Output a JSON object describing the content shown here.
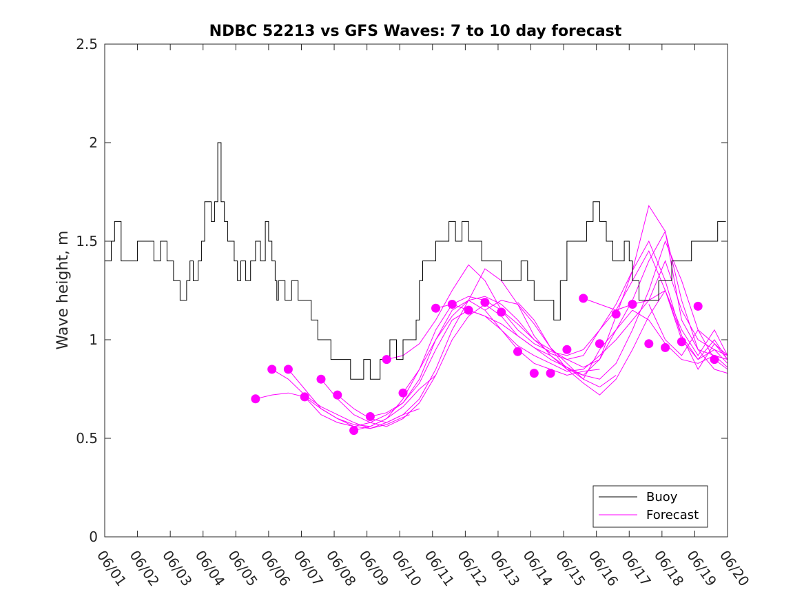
{
  "chart_data": {
    "type": "line",
    "title": "NDBC 52213 vs GFS Waves: 7 to 10 day forecast",
    "xlabel": "",
    "ylabel": "Wave height, m",
    "x_unit": "days",
    "xlim": [
      0,
      19
    ],
    "ylim": [
      0,
      2.5
    ],
    "yticks": [
      0,
      0.5,
      1,
      1.5,
      2,
      2.5
    ],
    "ytick_labels": [
      "0",
      "0.5",
      "1",
      "1.5",
      "2",
      "2.5"
    ],
    "xtick_labels": [
      "06/01",
      "06/02",
      "06/03",
      "06/04",
      "06/05",
      "06/06",
      "06/07",
      "06/08",
      "06/09",
      "06/10",
      "06/11",
      "06/12",
      "06/13",
      "06/14",
      "06/15",
      "06/16",
      "06/17",
      "06/18",
      "06/19",
      "06/20"
    ],
    "grid": false,
    "legend": {
      "placement": "bottom-right",
      "entries": [
        "Buoy",
        "Forecast"
      ]
    },
    "colors": {
      "buoy": "#000000",
      "forecast": "#ff00ff",
      "axis": "#262626"
    },
    "series": [
      {
        "name": "Buoy",
        "style": "step-line",
        "x": [
          0,
          0.2,
          0.3,
          0.5,
          0.8,
          1.0,
          1.2,
          1.5,
          1.7,
          1.9,
          2.1,
          2.3,
          2.5,
          2.6,
          2.7,
          2.85,
          2.95,
          3.05,
          3.15,
          3.25,
          3.35,
          3.45,
          3.55,
          3.65,
          3.75,
          3.85,
          3.95,
          4.05,
          4.15,
          4.3,
          4.45,
          4.6,
          4.75,
          4.9,
          5.0,
          5.1,
          5.2,
          5.25,
          5.3,
          5.5,
          5.7,
          5.9,
          6.1,
          6.3,
          6.5,
          6.7,
          6.9,
          7.1,
          7.3,
          7.5,
          7.7,
          7.9,
          8.1,
          8.3,
          8.4,
          8.5,
          8.7,
          8.9,
          9.1,
          9.3,
          9.5,
          9.6,
          9.7,
          9.9,
          10.1,
          10.3,
          10.5,
          10.7,
          10.9,
          11.1,
          11.3,
          11.5,
          11.7,
          11.9,
          12.1,
          12.3,
          12.5,
          12.7,
          12.9,
          13.1,
          13.3,
          13.5,
          13.7,
          13.9,
          14.1,
          14.3,
          14.5,
          14.7,
          14.9,
          15.1,
          15.3,
          15.5,
          15.7,
          15.85,
          16.0,
          16.1,
          16.2,
          16.3,
          16.4,
          16.5,
          16.7,
          16.9,
          17.1,
          17.3,
          17.5,
          17.7,
          17.9,
          18.1,
          18.3,
          18.5,
          18.7,
          18.85
        ],
        "y": [
          1.4,
          1.5,
          1.6,
          1.4,
          1.4,
          1.5,
          1.5,
          1.4,
          1.5,
          1.4,
          1.3,
          1.2,
          1.3,
          1.4,
          1.3,
          1.4,
          1.5,
          1.7,
          1.7,
          1.6,
          1.7,
          2.0,
          1.7,
          1.6,
          1.5,
          1.5,
          1.4,
          1.3,
          1.4,
          1.3,
          1.4,
          1.5,
          1.4,
          1.6,
          1.5,
          1.4,
          1.3,
          1.2,
          1.3,
          1.2,
          1.3,
          1.2,
          1.2,
          1.1,
          1.0,
          1.0,
          0.9,
          0.9,
          0.9,
          0.8,
          0.8,
          0.9,
          0.8,
          0.8,
          0.9,
          0.9,
          1.0,
          0.9,
          1.0,
          1.0,
          1.1,
          1.3,
          1.4,
          1.4,
          1.5,
          1.5,
          1.6,
          1.5,
          1.6,
          1.5,
          1.5,
          1.4,
          1.4,
          1.4,
          1.3,
          1.3,
          1.3,
          1.4,
          1.3,
          1.2,
          1.2,
          1.2,
          1.1,
          1.3,
          1.5,
          1.5,
          1.5,
          1.6,
          1.7,
          1.6,
          1.5,
          1.4,
          1.4,
          1.5,
          1.4,
          1.3,
          1.3,
          1.2,
          1.2,
          1.2,
          1.2,
          1.3,
          1.3,
          1.4,
          1.4,
          1.4,
          1.5,
          1.5,
          1.5,
          1.5,
          1.6,
          1.6
        ]
      },
      {
        "name": "Forecast",
        "style": "line-with-markers",
        "curves": [
          {
            "x": [
              4.6,
              5.1,
              5.6,
              6.1,
              6.6,
              7.1,
              7.6,
              8.1,
              8.6,
              9.0,
              9.3
            ],
            "y": [
              0.7,
              0.72,
              0.73,
              0.71,
              0.65,
              0.6,
              0.56,
              0.55,
              0.57,
              0.6,
              0.62
            ]
          },
          {
            "x": [
              5.1,
              5.6,
              6.1,
              6.6,
              7.1,
              7.6,
              8.1,
              8.6,
              9.1,
              9.6
            ],
            "y": [
              0.85,
              0.8,
              0.72,
              0.66,
              0.62,
              0.58,
              0.55,
              0.58,
              0.62,
              0.65
            ]
          },
          {
            "x": [
              5.6,
              6.1,
              6.6,
              7.1,
              7.6,
              8.1,
              8.6,
              9.1,
              9.6,
              10.1
            ],
            "y": [
              0.85,
              0.75,
              0.65,
              0.6,
              0.57,
              0.56,
              0.6,
              0.66,
              0.75,
              0.82
            ]
          },
          {
            "x": [
              6.1,
              6.6,
              7.1,
              7.6,
              8.1,
              8.6,
              9.1,
              9.6,
              10.1,
              10.6,
              11.1,
              11.6,
              12.1,
              12.6,
              13.1,
              13.6,
              14.1,
              14.6,
              15.1
            ],
            "y": [
              0.71,
              0.62,
              0.58,
              0.56,
              0.58,
              0.62,
              0.68,
              0.8,
              1.0,
              1.15,
              1.2,
              1.15,
              1.05,
              0.95,
              0.88,
              0.85,
              0.82,
              0.84,
              0.85
            ]
          },
          {
            "x": [
              6.6,
              7.1,
              7.6,
              8.1,
              8.6,
              9.1,
              9.6,
              10.1,
              10.6,
              11.1,
              11.6,
              12.1,
              12.6,
              13.1,
              13.6,
              14.1,
              14.6,
              15.1,
              15.6
            ],
            "y": [
              0.8,
              0.7,
              0.62,
              0.58,
              0.56,
              0.6,
              0.68,
              0.82,
              1.0,
              1.12,
              1.18,
              1.12,
              1.02,
              0.96,
              0.92,
              0.86,
              0.8,
              0.76,
              0.82
            ]
          },
          {
            "x": [
              7.1,
              7.6,
              8.1,
              8.6,
              9.1,
              9.6,
              10.1,
              10.6,
              11.1,
              11.6,
              12.1,
              12.6,
              13.1,
              13.6,
              14.1,
              14.6,
              15.1,
              15.6,
              16.1,
              16.6,
              17.1,
              17.6,
              18.1,
              18.6,
              19.0
            ],
            "y": [
              0.72,
              0.65,
              0.6,
              0.58,
              0.62,
              0.7,
              0.85,
              1.05,
              1.2,
              1.36,
              1.3,
              1.18,
              1.02,
              0.92,
              0.85,
              0.78,
              0.72,
              0.8,
              0.95,
              1.12,
              1.25,
              1.0,
              0.9,
              0.95,
              0.88
            ]
          },
          {
            "x": [
              7.6,
              8.1,
              8.6,
              9.1,
              9.6,
              10.1,
              10.6,
              11.1,
              11.6,
              12.1,
              12.6,
              13.1,
              13.6,
              14.1,
              14.6,
              15.1,
              15.6,
              16.1,
              16.6,
              17.1,
              17.6,
              18.1,
              18.6,
              19.0
            ],
            "y": [
              0.54,
              0.56,
              0.6,
              0.7,
              0.85,
              1.05,
              1.18,
              1.22,
              1.2,
              1.15,
              1.08,
              1.0,
              0.95,
              0.9,
              0.86,
              0.9,
              1.05,
              1.2,
              1.4,
              1.55,
              1.2,
              0.95,
              0.85,
              0.83
            ]
          },
          {
            "x": [
              8.1,
              8.6,
              9.1,
              9.6,
              10.1,
              10.6,
              11.1,
              11.6,
              12.1,
              12.6,
              13.1,
              13.6,
              14.1,
              14.6,
              15.1,
              15.6,
              16.1,
              16.6,
              17.1,
              17.6,
              18.1,
              18.6,
              19.0
            ],
            "y": [
              0.61,
              0.63,
              0.68,
              0.78,
              0.95,
              1.1,
              1.15,
              1.12,
              1.08,
              1.02,
              0.96,
              0.9,
              0.86,
              0.82,
              0.8,
              0.88,
              1.05,
              1.25,
              1.5,
              1.3,
              1.05,
              0.9,
              0.85
            ]
          },
          {
            "x": [
              8.6,
              9.1,
              9.6,
              10.1,
              10.6,
              11.1,
              11.6,
              12.1,
              12.6,
              13.1,
              13.6,
              14.1,
              14.6,
              15.1,
              15.6,
              16.1,
              16.6,
              17.1,
              17.6,
              18.1,
              18.6,
              19.0
            ],
            "y": [
              0.9,
              0.92,
              0.98,
              1.1,
              1.25,
              1.38,
              1.3,
              1.15,
              1.05,
              0.98,
              0.94,
              0.92,
              0.95,
              1.05,
              1.18,
              1.35,
              1.68,
              1.55,
              1.1,
              0.95,
              0.92,
              0.9
            ]
          },
          {
            "x": [
              9.1,
              9.6,
              10.1,
              10.6,
              11.1,
              11.6,
              12.1,
              12.6,
              13.1,
              13.6,
              14.1,
              14.6,
              15.1,
              15.6,
              16.1,
              16.6,
              17.1,
              17.6,
              18.1,
              18.6,
              19.0
            ],
            "y": [
              0.73,
              0.85,
              1.0,
              1.12,
              1.2,
              1.22,
              1.18,
              1.1,
              1.0,
              0.93,
              0.9,
              0.92,
              1.05,
              1.15,
              1.18,
              1.2,
              1.4,
              1.15,
              1.0,
              0.95,
              0.92
            ]
          },
          {
            "x": [
              10.1,
              10.6,
              11.1,
              11.6,
              12.1,
              12.6,
              13.1,
              13.6,
              14.1,
              14.6,
              15.1,
              15.6,
              16.1,
              16.6,
              17.1,
              17.6,
              18.1,
              18.6,
              19.0
            ],
            "y": [
              1.16,
              1.18,
              1.15,
              1.12,
              1.05,
              0.97,
              0.92,
              0.88,
              0.84,
              0.85,
              0.92,
              1.0,
              1.1,
              1.2,
              1.25,
              1.05,
              0.92,
              1.05,
              0.92
            ]
          },
          {
            "x": [
              11.6,
              12.1,
              12.6,
              13.1,
              13.6,
              14.1,
              14.6,
              15.1,
              15.6,
              16.1,
              16.6,
              17.1,
              17.6,
              18.1,
              18.6,
              19.0
            ],
            "y": [
              1.15,
              1.2,
              1.18,
              1.08,
              0.96,
              0.88,
              0.8,
              0.95,
              1.05,
              1.15,
              1.1,
              0.98,
              0.9,
              0.88,
              0.92,
              0.86
            ]
          },
          {
            "x": [
              12.6,
              13.1,
              13.6,
              14.1,
              14.6,
              15.1,
              15.6,
              16.1,
              16.6,
              17.1,
              17.6,
              18.1,
              18.6,
              19.0
            ],
            "y": [
              1.19,
              1.1,
              0.96,
              0.85,
              0.82,
              0.9,
              1.12,
              1.35,
              1.5,
              1.3,
              1.02,
              0.85,
              0.98,
              0.92
            ]
          },
          {
            "x": [
              14.6,
              15.1,
              15.6,
              16.1,
              16.6,
              17.1,
              17.6,
              18.1,
              18.6,
              19.0
            ],
            "y": [
              1.21,
              1.18,
              1.15,
              1.3,
              1.45,
              1.25,
              1.02,
              0.9,
              1.0,
              0.9
            ]
          },
          {
            "x": [
              16.6,
              17.1,
              17.6,
              18.1,
              18.6,
              19.0
            ],
            "y": [
              1.18,
              1.0,
              0.92,
              1.05,
              0.98,
              0.9
            ]
          }
        ],
        "markers": {
          "x": [
            4.6,
            5.1,
            5.6,
            6.1,
            6.6,
            7.1,
            7.6,
            8.1,
            8.6,
            9.1,
            10.1,
            10.6,
            11.1,
            11.6,
            12.1,
            12.6,
            13.1,
            13.6,
            14.1,
            14.6,
            15.1,
            15.6,
            16.1,
            16.6,
            17.1,
            17.6,
            18.1,
            18.6
          ],
          "y": [
            0.7,
            0.85,
            0.85,
            0.71,
            0.8,
            0.72,
            0.54,
            0.61,
            0.9,
            0.73,
            1.16,
            1.18,
            1.15,
            1.19,
            1.14,
            0.94,
            0.83,
            0.83,
            0.95,
            1.21,
            0.98,
            1.13,
            1.18,
            0.98,
            0.96,
            0.99,
            1.17,
            0.9
          ]
        }
      }
    ]
  }
}
